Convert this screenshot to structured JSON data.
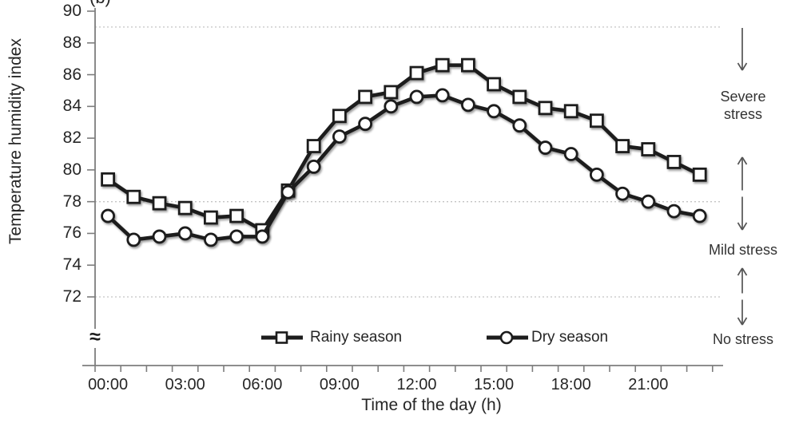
{
  "figure": {
    "panel_label": "(b)",
    "axis_break_symbol": "≈"
  },
  "chart_data": {
    "type": "line",
    "title": "",
    "xlabel": "Time of the day (h)",
    "ylabel": "Temperature humidity index",
    "x_unit": "hour of day",
    "x_hours": [
      0,
      1,
      2,
      3,
      4,
      5,
      6,
      7,
      8,
      9,
      10,
      11,
      12,
      13,
      14,
      15,
      16,
      17,
      18,
      19,
      20,
      21,
      22,
      23
    ],
    "x_tick_labels": [
      "00:00",
      "03:00",
      "06:00",
      "09:00",
      "12:00",
      "15:00",
      "18:00",
      "21:00"
    ],
    "x_tick_hours": [
      0,
      3,
      6,
      9,
      12,
      15,
      18,
      21
    ],
    "y_tick_labels": [
      "90",
      "88",
      "86",
      "84",
      "82",
      "80",
      "78",
      "76",
      "74",
      "72"
    ],
    "ylim": [
      72,
      90
    ],
    "y_axis_break_below": 72,
    "gridline_values": [
      89,
      78,
      72
    ],
    "grid_style": "dotted-horizontal",
    "legend_position": "bottom-inside",
    "series": [
      {
        "name": "Rainy season",
        "marker": "square",
        "color": "#1c1c1c",
        "values": [
          79.4,
          78.3,
          77.9,
          77.6,
          77.0,
          77.1,
          76.2,
          78.7,
          81.5,
          83.4,
          84.6,
          84.9,
          86.1,
          86.6,
          86.6,
          85.4,
          84.6,
          83.9,
          83.7,
          83.1,
          81.5,
          81.3,
          80.5,
          79.7
        ]
      },
      {
        "name": "Dry season",
        "marker": "circle",
        "color": "#1c1c1c",
        "values": [
          77.1,
          75.6,
          75.8,
          76.0,
          75.6,
          75.8,
          75.8,
          78.6,
          80.2,
          82.1,
          82.9,
          84.0,
          84.6,
          84.7,
          84.1,
          83.7,
          82.8,
          81.4,
          81.0,
          79.7,
          78.5,
          78.0,
          77.4,
          77.1
        ]
      }
    ],
    "stress_zones": [
      {
        "label": "Severe stress",
        "arrow": "down"
      },
      {
        "label": "Mild stress",
        "arrow": "double"
      },
      {
        "label": "No stress",
        "arrow": "double"
      }
    ]
  }
}
